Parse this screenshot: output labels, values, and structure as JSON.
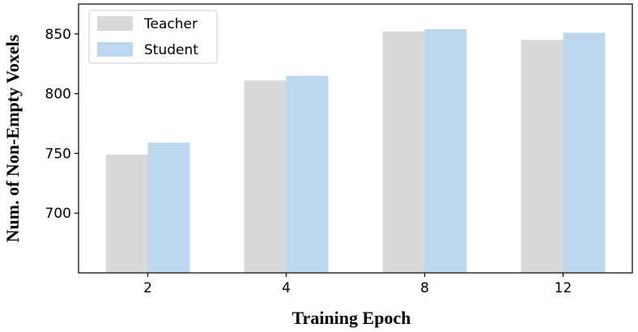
{
  "chart_data": {
    "type": "bar",
    "categories": [
      "2",
      "4",
      "8",
      "12"
    ],
    "series": [
      {
        "name": "Teacher",
        "values": [
          749,
          811,
          852,
          845
        ],
        "color": "#d9d9d9"
      },
      {
        "name": "Student",
        "values": [
          759,
          815,
          854,
          851
        ],
        "color": "#bdd7ee"
      }
    ],
    "title": "",
    "xlabel": "Training Epoch",
    "ylabel": "Num. of Non-Empty Voxels",
    "ylim": [
      650,
      875
    ],
    "yticks": [
      700,
      750,
      800,
      850
    ],
    "grid": false,
    "legend_position": "top-left"
  }
}
